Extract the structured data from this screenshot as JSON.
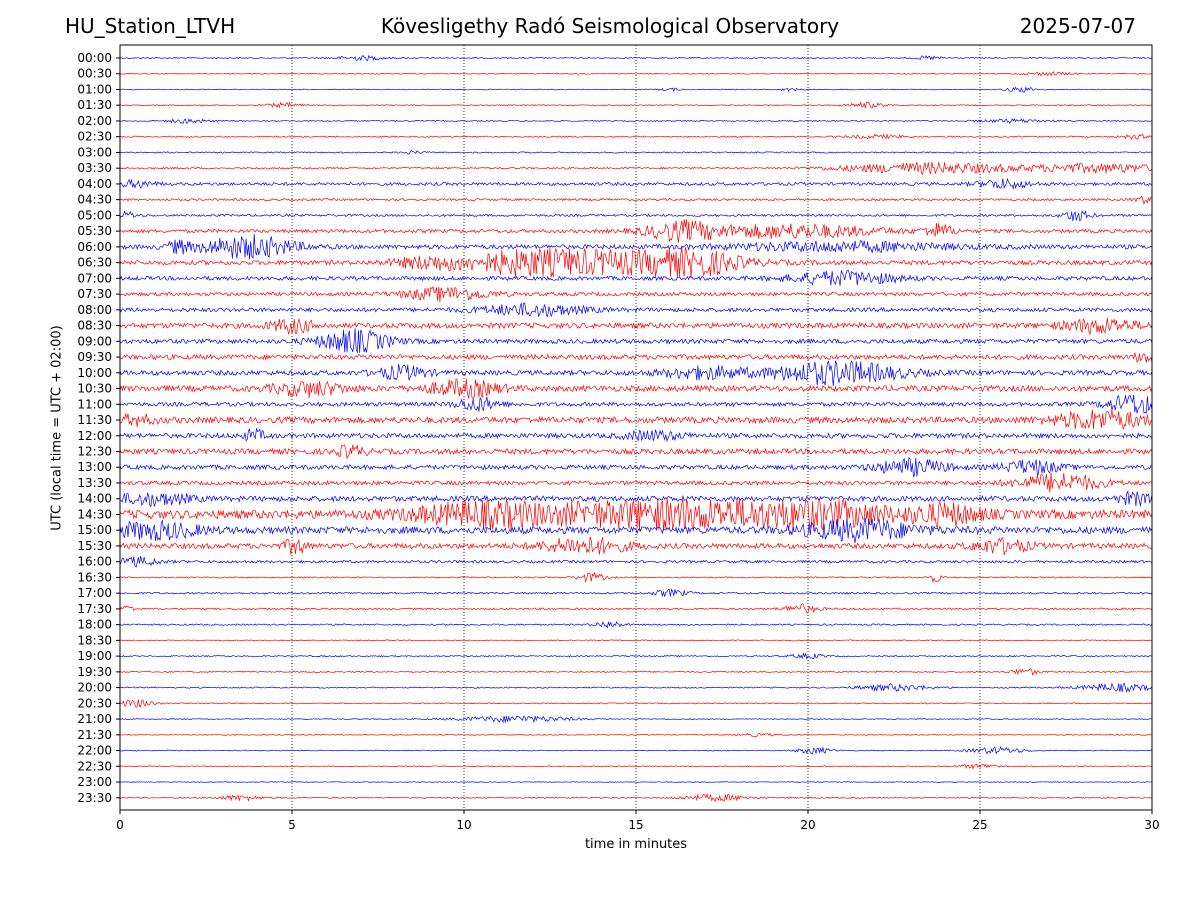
{
  "header": {
    "station": "HU_Station_LTVH",
    "observatory": "Kövesligethy Radó Seismological Observatory",
    "date": "2025-07-07"
  },
  "chart_data": {
    "type": "line",
    "title": "Kövesligethy Radó Seismological Observatory",
    "xlabel": "time in minutes",
    "ylabel": "UTC (local time = UTC + 02:00)",
    "xlim": [
      0,
      30
    ],
    "x_ticks": [
      0,
      5,
      10,
      15,
      20,
      25,
      30
    ],
    "vertical_gridlines": [
      5,
      10,
      15,
      20,
      25
    ],
    "grid": "dotted vertical",
    "colors": {
      "odd_row": "#0000ff",
      "even_row": "#ff0000",
      "grid": "#000000"
    },
    "rows": [
      {
        "label": "00:00",
        "color": "#0000ff",
        "noise": 0.25,
        "events": [
          {
            "t": 7,
            "amp": 1.0,
            "dur": 0.7
          },
          {
            "t": 23.5,
            "amp": 0.8,
            "dur": 0.4
          }
        ]
      },
      {
        "label": "00:30",
        "color": "#ff0000",
        "noise": 0.2,
        "events": [
          {
            "t": 27,
            "amp": 0.8,
            "dur": 0.7
          }
        ]
      },
      {
        "label": "01:00",
        "color": "#0000ff",
        "noise": 0.2,
        "events": [
          {
            "t": 16,
            "amp": 0.6,
            "dur": 0.3
          },
          {
            "t": 26.2,
            "amp": 1.2,
            "dur": 0.4
          },
          {
            "t": 19.5,
            "amp": 0.6,
            "dur": 0.3
          }
        ]
      },
      {
        "label": "01:30",
        "color": "#ff0000",
        "noise": 0.25,
        "events": [
          {
            "t": 4.8,
            "amp": 1.0,
            "dur": 0.5
          },
          {
            "t": 21.7,
            "amp": 1.3,
            "dur": 0.5
          }
        ]
      },
      {
        "label": "02:00",
        "color": "#0000ff",
        "noise": 0.25,
        "events": [
          {
            "t": 2,
            "amp": 1.0,
            "dur": 0.6
          },
          {
            "t": 26,
            "amp": 0.8,
            "dur": 1.0
          }
        ]
      },
      {
        "label": "02:30",
        "color": "#ff0000",
        "noise": 0.3,
        "events": [
          {
            "t": 22,
            "amp": 0.8,
            "dur": 0.8
          },
          {
            "t": 29.5,
            "amp": 0.9,
            "dur": 0.4
          }
        ]
      },
      {
        "label": "03:00",
        "color": "#0000ff",
        "noise": 0.3,
        "events": [
          {
            "t": 8.5,
            "amp": 0.7,
            "dur": 0.3
          }
        ]
      },
      {
        "label": "03:30",
        "color": "#ff0000",
        "noise": 0.4,
        "events": [
          {
            "t": 23.5,
            "amp": 2.5,
            "dur": 2.5
          },
          {
            "t": 28.5,
            "amp": 2.0,
            "dur": 2.0
          }
        ]
      },
      {
        "label": "04:00",
        "color": "#0000ff",
        "noise": 0.7,
        "events": [
          {
            "t": 0.5,
            "amp": 1.5,
            "dur": 0.5
          },
          {
            "t": 25.7,
            "amp": 2.0,
            "dur": 0.7
          }
        ]
      },
      {
        "label": "04:30",
        "color": "#ff0000",
        "noise": 0.5,
        "events": [
          {
            "t": 29.8,
            "amp": 1.5,
            "dur": 0.3
          }
        ]
      },
      {
        "label": "05:00",
        "color": "#0000ff",
        "noise": 0.5,
        "events": [
          {
            "t": 0.2,
            "amp": 1.5,
            "dur": 0.3
          },
          {
            "t": 27.8,
            "amp": 2.5,
            "dur": 0.4
          }
        ]
      },
      {
        "label": "05:30",
        "color": "#ff0000",
        "noise": 0.8,
        "events": [
          {
            "t": 16.3,
            "amp": 4.0,
            "dur": 1.0
          },
          {
            "t": 19.5,
            "amp": 3.0,
            "dur": 2.5
          },
          {
            "t": 23.8,
            "amp": 3.0,
            "dur": 0.4
          }
        ]
      },
      {
        "label": "06:00",
        "color": "#0000ff",
        "noise": 1.0,
        "events": [
          {
            "t": 3.7,
            "amp": 5.0,
            "dur": 1.3
          },
          {
            "t": 1.7,
            "amp": 2.5,
            "dur": 0.3
          },
          {
            "t": 21,
            "amp": 2.0,
            "dur": 3.0
          }
        ]
      },
      {
        "label": "06:30",
        "color": "#ff0000",
        "noise": 1.0,
        "events": [
          {
            "t": 14,
            "amp": 5.0,
            "dur": 3.0
          },
          {
            "t": 11.5,
            "amp": 3.0,
            "dur": 1.5
          },
          {
            "t": 16.8,
            "amp": 4.0,
            "dur": 1.2
          },
          {
            "t": 9,
            "amp": 2.5,
            "dur": 1.0
          }
        ]
      },
      {
        "label": "07:00",
        "color": "#0000ff",
        "noise": 0.9,
        "events": [
          {
            "t": 21,
            "amp": 3.0,
            "dur": 1.5
          }
        ]
      },
      {
        "label": "07:30",
        "color": "#ff0000",
        "noise": 0.8,
        "events": [
          {
            "t": 9.5,
            "amp": 3.0,
            "dur": 1.2
          }
        ]
      },
      {
        "label": "08:00",
        "color": "#0000ff",
        "noise": 0.9,
        "events": [
          {
            "t": 12,
            "amp": 2.5,
            "dur": 1.5
          }
        ]
      },
      {
        "label": "08:30",
        "color": "#ff0000",
        "noise": 1.2,
        "events": [
          {
            "t": 5,
            "amp": 3.0,
            "dur": 0.6
          },
          {
            "t": 28.5,
            "amp": 3.0,
            "dur": 1.0
          }
        ]
      },
      {
        "label": "09:00",
        "color": "#0000ff",
        "noise": 1.0,
        "events": [
          {
            "t": 6.8,
            "amp": 5.0,
            "dur": 1.0
          }
        ]
      },
      {
        "label": "09:30",
        "color": "#ff0000",
        "noise": 1.1,
        "events": [
          {
            "t": 29.8,
            "amp": 2.5,
            "dur": 0.3
          }
        ]
      },
      {
        "label": "10:00",
        "color": "#0000ff",
        "noise": 1.1,
        "events": [
          {
            "t": 20.8,
            "amp": 5.0,
            "dur": 1.8
          },
          {
            "t": 8.2,
            "amp": 3.0,
            "dur": 0.7
          },
          {
            "t": 17,
            "amp": 2.5,
            "dur": 1.2
          }
        ]
      },
      {
        "label": "10:30",
        "color": "#ff0000",
        "noise": 1.3,
        "events": [
          {
            "t": 5.5,
            "amp": 3.0,
            "dur": 1.0
          },
          {
            "t": 10,
            "amp": 3.5,
            "dur": 1.0
          }
        ]
      },
      {
        "label": "11:00",
        "color": "#0000ff",
        "noise": 0.9,
        "events": [
          {
            "t": 10.4,
            "amp": 3.0,
            "dur": 0.6
          },
          {
            "t": 29.5,
            "amp": 4.5,
            "dur": 0.8
          }
        ]
      },
      {
        "label": "11:30",
        "color": "#ff0000",
        "noise": 1.4,
        "events": [
          {
            "t": 28.5,
            "amp": 4.0,
            "dur": 1.3
          },
          {
            "t": 0.5,
            "amp": 2.0,
            "dur": 0.5
          }
        ]
      },
      {
        "label": "12:00",
        "color": "#0000ff",
        "noise": 1.1,
        "events": [
          {
            "t": 3.9,
            "amp": 2.5,
            "dur": 0.3
          },
          {
            "t": 15.5,
            "amp": 2.0,
            "dur": 0.8
          }
        ]
      },
      {
        "label": "12:30",
        "color": "#ff0000",
        "noise": 1.2,
        "events": [
          {
            "t": 6.7,
            "amp": 2.5,
            "dur": 0.4
          }
        ]
      },
      {
        "label": "13:00",
        "color": "#0000ff",
        "noise": 1.0,
        "events": [
          {
            "t": 23,
            "amp": 3.5,
            "dur": 1.0
          },
          {
            "t": 26.5,
            "amp": 3.0,
            "dur": 0.8
          }
        ]
      },
      {
        "label": "13:30",
        "color": "#ff0000",
        "noise": 0.9,
        "events": [
          {
            "t": 27.3,
            "amp": 4.0,
            "dur": 1.2
          }
        ]
      },
      {
        "label": "14:00",
        "color": "#0000ff",
        "noise": 1.2,
        "events": [
          {
            "t": 1,
            "amp": 2.5,
            "dur": 1.0
          },
          {
            "t": 29.5,
            "amp": 2.5,
            "dur": 0.5
          }
        ]
      },
      {
        "label": "14:30",
        "color": "#ff0000",
        "noise": 2.0,
        "events": [
          {
            "t": 16,
            "amp": 6.0,
            "dur": 3.5
          },
          {
            "t": 10.5,
            "amp": 4.5,
            "dur": 2.0
          },
          {
            "t": 20.5,
            "amp": 4.5,
            "dur": 2.0
          },
          {
            "t": 24,
            "amp": 4.0,
            "dur": 1.0
          }
        ]
      },
      {
        "label": "15:00",
        "color": "#0000ff",
        "noise": 1.6,
        "events": [
          {
            "t": 21.5,
            "amp": 4.5,
            "dur": 1.5
          },
          {
            "t": 1,
            "amp": 3.5,
            "dur": 1.2
          }
        ]
      },
      {
        "label": "15:30",
        "color": "#ff0000",
        "noise": 1.2,
        "events": [
          {
            "t": 5.1,
            "amp": 3.5,
            "dur": 0.3
          },
          {
            "t": 13.5,
            "amp": 3.5,
            "dur": 1.2
          },
          {
            "t": 25.6,
            "amp": 3.0,
            "dur": 0.8
          }
        ]
      },
      {
        "label": "16:00",
        "color": "#0000ff",
        "noise": 0.6,
        "events": [
          {
            "t": 0.5,
            "amp": 2.0,
            "dur": 0.6
          }
        ]
      },
      {
        "label": "16:30",
        "color": "#ff0000",
        "noise": 0.3,
        "events": [
          {
            "t": 13.7,
            "amp": 2.0,
            "dur": 0.4
          },
          {
            "t": 23.7,
            "amp": 2.0,
            "dur": 0.2
          }
        ]
      },
      {
        "label": "17:00",
        "color": "#0000ff",
        "noise": 0.4,
        "events": [
          {
            "t": 16,
            "amp": 1.5,
            "dur": 0.5
          }
        ]
      },
      {
        "label": "17:30",
        "color": "#ff0000",
        "noise": 0.4,
        "events": [
          {
            "t": 19.8,
            "amp": 2.0,
            "dur": 0.5
          },
          {
            "t": 0.2,
            "amp": 1.5,
            "dur": 0.2
          }
        ]
      },
      {
        "label": "18:00",
        "color": "#0000ff",
        "noise": 0.35,
        "events": [
          {
            "t": 14.2,
            "amp": 1.5,
            "dur": 0.4
          }
        ]
      },
      {
        "label": "18:30",
        "color": "#ff0000",
        "noise": 0.25,
        "events": []
      },
      {
        "label": "19:00",
        "color": "#0000ff",
        "noise": 0.3,
        "events": [
          {
            "t": 20,
            "amp": 1.0,
            "dur": 0.5
          }
        ]
      },
      {
        "label": "19:30",
        "color": "#ff0000",
        "noise": 0.3,
        "events": [
          {
            "t": 26.3,
            "amp": 1.5,
            "dur": 0.4
          }
        ]
      },
      {
        "label": "20:00",
        "color": "#0000ff",
        "noise": 0.3,
        "events": [
          {
            "t": 22.5,
            "amp": 1.5,
            "dur": 1.0
          },
          {
            "t": 29,
            "amp": 1.8,
            "dur": 1.0
          }
        ]
      },
      {
        "label": "20:30",
        "color": "#ff0000",
        "noise": 0.25,
        "events": [
          {
            "t": 0.5,
            "amp": 1.8,
            "dur": 0.5
          }
        ]
      },
      {
        "label": "21:00",
        "color": "#0000ff",
        "noise": 0.2,
        "events": [
          {
            "t": 11.5,
            "amp": 1.5,
            "dur": 1.6
          }
        ]
      },
      {
        "label": "21:30",
        "color": "#ff0000",
        "noise": 0.2,
        "events": [
          {
            "t": 18.5,
            "amp": 0.6,
            "dur": 0.6
          }
        ]
      },
      {
        "label": "22:00",
        "color": "#0000ff",
        "noise": 0.2,
        "events": [
          {
            "t": 20.2,
            "amp": 1.5,
            "dur": 0.5
          },
          {
            "t": 25.5,
            "amp": 1.5,
            "dur": 0.8
          }
        ]
      },
      {
        "label": "22:30",
        "color": "#ff0000",
        "noise": 0.2,
        "events": [
          {
            "t": 25,
            "amp": 1.0,
            "dur": 0.6
          }
        ]
      },
      {
        "label": "23:00",
        "color": "#0000ff",
        "noise": 0.15,
        "events": []
      },
      {
        "label": "23:30",
        "color": "#ff0000",
        "noise": 0.25,
        "events": [
          {
            "t": 3.5,
            "amp": 1.2,
            "dur": 0.6
          },
          {
            "t": 17.3,
            "amp": 1.5,
            "dur": 1.0
          }
        ]
      }
    ]
  }
}
